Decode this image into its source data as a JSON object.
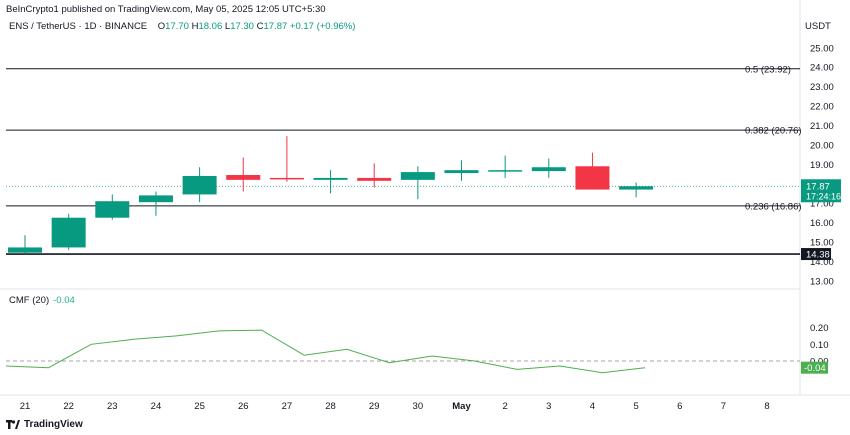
{
  "header": {
    "publisher": "BeInCrypto1 published on TradingView.com, May 05, 2025 12:05 UTC+5:30",
    "symbol": "ENS / TetherUS · 1D · BINANCE",
    "o_label": "O",
    "o_value": "17.70",
    "h_label": "H",
    "h_value": "18.06",
    "l_label": "L",
    "l_value": "17.30",
    "c_label": "C",
    "c_value": "17.87",
    "change": "+0.17 (+0.96%)",
    "currency": "USDT"
  },
  "cmf_legend": {
    "name": "CMF (20)",
    "value": "-0.04"
  },
  "footer": {
    "brand": "TradingView"
  },
  "colors": {
    "up": "#089981",
    "down": "#f23645",
    "cmf": "#4caf50",
    "level": "#131722"
  },
  "chart_data": [
    {
      "type": "candlestick",
      "title": "ENS / TetherUS · 1D · BINANCE",
      "x_tick_labels": [
        "21",
        "22",
        "23",
        "24",
        "25",
        "26",
        "27",
        "28",
        "29",
        "30",
        "May",
        "2",
        "3",
        "4",
        "5",
        "6",
        "7",
        "8"
      ],
      "y_tick_labels": [
        "25.00",
        "24.00",
        "23.00",
        "22.00",
        "21.00",
        "20.00",
        "19.00",
        "18.00",
        "17.00",
        "16.00",
        "15.00",
        "14.00",
        "13.00"
      ],
      "ylim": [
        12.5,
        25.5
      ],
      "candles": [
        {
          "date": "Apr 21",
          "open": 14.45,
          "high": 15.35,
          "low": 14.42,
          "close": 14.72
        },
        {
          "date": "Apr 22",
          "open": 14.72,
          "high": 16.45,
          "low": 14.6,
          "close": 16.25
        },
        {
          "date": "Apr 23",
          "open": 16.25,
          "high": 17.45,
          "low": 16.15,
          "close": 17.1
        },
        {
          "date": "Apr 24",
          "open": 17.05,
          "high": 17.6,
          "low": 16.35,
          "close": 17.4
        },
        {
          "date": "Apr 25",
          "open": 17.45,
          "high": 18.85,
          "low": 17.05,
          "close": 18.4
        },
        {
          "date": "Apr 26",
          "open": 18.45,
          "high": 19.35,
          "low": 17.6,
          "close": 18.2
        },
        {
          "date": "Apr 27",
          "open": 18.3,
          "high": 20.45,
          "low": 18.1,
          "close": 18.25
        },
        {
          "date": "Apr 28",
          "open": 18.2,
          "high": 18.7,
          "low": 17.5,
          "close": 18.3
        },
        {
          "date": "Apr 29",
          "open": 18.3,
          "high": 19.05,
          "low": 17.8,
          "close": 18.15
        },
        {
          "date": "Apr 30",
          "open": 18.2,
          "high": 18.9,
          "low": 17.2,
          "close": 18.6
        },
        {
          "date": "May 1",
          "open": 18.55,
          "high": 19.2,
          "low": 18.15,
          "close": 18.7
        },
        {
          "date": "May 2",
          "open": 18.65,
          "high": 19.45,
          "low": 18.3,
          "close": 18.7
        },
        {
          "date": "May 3",
          "open": 18.65,
          "high": 19.3,
          "low": 18.3,
          "close": 18.85
        },
        {
          "date": "May 4",
          "open": 18.9,
          "high": 19.6,
          "low": 17.7,
          "close": 17.7
        },
        {
          "date": "May 5",
          "open": 17.7,
          "high": 18.06,
          "low": 17.3,
          "close": 17.87
        }
      ],
      "levels": [
        {
          "label": "0.5 (23.92)",
          "value": 23.92
        },
        {
          "label": "0.382 (20.76)",
          "value": 20.76
        },
        {
          "label": "0.236 (16.86)",
          "value": 16.86
        },
        {
          "label": "14.38",
          "value": 14.38
        }
      ],
      "last_price": {
        "value": 17.87,
        "label": "17.87",
        "countdown": "17:24:16"
      }
    },
    {
      "type": "line",
      "title": "CMF (20)",
      "y_tick_labels": [
        "0.20",
        "0.10",
        "0.00"
      ],
      "ylim": [
        -0.075,
        0.225
      ],
      "series": [
        {
          "name": "CMF (20)",
          "values": [
            -0.03,
            -0.04,
            0.1,
            0.13,
            0.15,
            0.18,
            0.185,
            0.035,
            0.07,
            -0.01,
            0.03,
            0.0,
            -0.05,
            -0.03,
            -0.07,
            -0.04
          ]
        }
      ],
      "zero_line": 0.0,
      "last_value_label": "-0.04"
    }
  ]
}
